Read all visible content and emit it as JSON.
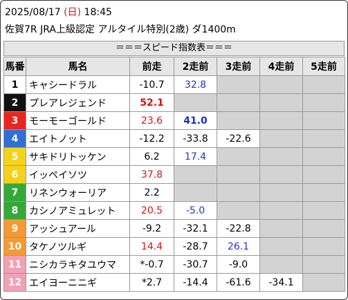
{
  "header": {
    "date": "2025/08/17",
    "weekday": "(日)",
    "time": "18:45",
    "race": "佐賀7R JRA上級認定 アルタイル特別(2歳) ダ1400m"
  },
  "table": {
    "title": "＝＝＝スピード指数表＝＝＝",
    "columns": [
      "馬番",
      "馬名",
      "前走",
      "2走前",
      "3走前",
      "4走前",
      "5走前"
    ],
    "rows": [
      {
        "num": "1",
        "name": "キャシードラル",
        "frame": "#ffffff",
        "num_color": "#000000",
        "cells": [
          {
            "text": "-10.7"
          },
          {
            "text": "32.8",
            "color": "#2233cc"
          },
          null,
          null,
          null
        ]
      },
      {
        "num": "2",
        "name": "プレアレジェンド",
        "frame": "#111111",
        "num_color": "#ffffff",
        "cells": [
          {
            "text": "52.1",
            "color": "#e01010",
            "bold": true
          },
          null,
          null,
          null,
          null
        ]
      },
      {
        "num": "3",
        "name": "モーモーゴールド",
        "frame": "#e8261e",
        "num_color": "#ffffff",
        "cells": [
          {
            "text": "23.6",
            "color": "#e01010"
          },
          {
            "text": "41.0",
            "color": "#1a2fd0",
            "bold": true
          },
          null,
          null,
          null
        ]
      },
      {
        "num": "4",
        "name": "エイトノット",
        "frame": "#2f6fd6",
        "num_color": "#ffffff",
        "cells": [
          {
            "text": "-12.2"
          },
          {
            "text": "-33.8"
          },
          {
            "text": "-22.6"
          },
          null,
          null
        ]
      },
      {
        "num": "5",
        "name": "サキドリトッケン",
        "frame": "#f4d21c",
        "num_color": "#ffffff",
        "cells": [
          {
            "text": "6.2"
          },
          {
            "text": "17.4",
            "color": "#2233cc"
          },
          null,
          null,
          null
        ]
      },
      {
        "num": "6",
        "name": "イッペイソツ",
        "frame": "#f4d21c",
        "num_color": "#ffffff",
        "cells": [
          {
            "text": "37.8",
            "color": "#e01010"
          },
          null,
          null,
          null,
          null
        ]
      },
      {
        "num": "7",
        "name": "リネンウォーリア",
        "frame": "#35a83a",
        "num_color": "#ffffff",
        "cells": [
          {
            "text": "2.2"
          },
          null,
          null,
          null,
          null
        ]
      },
      {
        "num": "8",
        "name": "カシノアミュレット",
        "frame": "#35a83a",
        "num_color": "#ffffff",
        "cells": [
          {
            "text": "20.5",
            "color": "#e01010"
          },
          {
            "text": "-5.0",
            "color": "#2233cc"
          },
          null,
          null,
          null
        ]
      },
      {
        "num": "9",
        "name": "アッシュアール",
        "frame": "#f39a33",
        "num_color": "#ffffff",
        "cells": [
          {
            "text": "-9.2"
          },
          {
            "text": "-32.1"
          },
          {
            "text": "-22.8"
          },
          null,
          null
        ]
      },
      {
        "num": "10",
        "name": "タケノツルギ",
        "frame": "#f39a33",
        "num_color": "#ffffff",
        "cells": [
          {
            "text": "14.4",
            "color": "#e01010"
          },
          {
            "text": "-28.7"
          },
          {
            "text": "26.1",
            "color": "#2233cc"
          },
          null,
          null
        ]
      },
      {
        "num": "11",
        "name": "ニシカラキタユウマ",
        "frame": "#f2a0b4",
        "num_color": "#ffffff",
        "cells": [
          {
            "text": "*-0.7"
          },
          {
            "text": "-30.7"
          },
          {
            "text": "-9.0"
          },
          null,
          null
        ]
      },
      {
        "num": "12",
        "name": "エイヨーニニギ",
        "frame": "#f2a0b4",
        "num_color": "#ffffff",
        "cells": [
          {
            "text": "*2.7"
          },
          {
            "text": "-14.4"
          },
          {
            "text": "-61.6"
          },
          {
            "text": "-34.1"
          },
          null
        ]
      }
    ]
  }
}
